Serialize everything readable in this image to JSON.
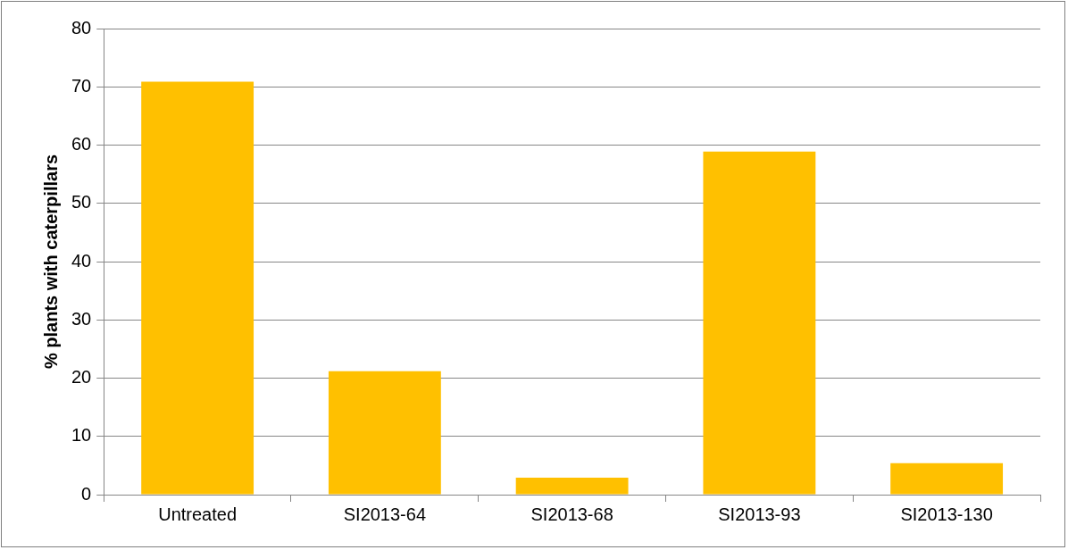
{
  "chart_data": {
    "type": "bar",
    "ylabel": "% plants with caterpillars",
    "categories": [
      "Untreated",
      "SI2013-64",
      "SI2013-68",
      "SI2013-93",
      "SI2013-130"
    ],
    "values": [
      70.9,
      21.2,
      2.9,
      58.9,
      5.4
    ],
    "color": "#ffc000",
    "ylim": [
      0,
      80
    ],
    "yticks": [
      0,
      10,
      20,
      30,
      40,
      50,
      60,
      70,
      80
    ],
    "grid": "y",
    "legend": false
  }
}
